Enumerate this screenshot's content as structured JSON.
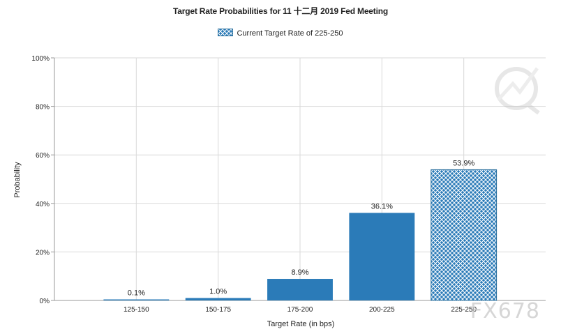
{
  "chart_data": {
    "type": "bar",
    "title": "Target Rate Probabilities for 11 十二月 2019 Fed Meeting",
    "legend": {
      "label": "Current Target Rate of 225-250",
      "placement": "top-center"
    },
    "xlabel": "Target Rate (in bps)",
    "ylabel": "Probability",
    "categories": [
      "125-150",
      "150-175",
      "175-200",
      "200-225",
      "225-250"
    ],
    "values": [
      0.1,
      1.0,
      8.9,
      36.1,
      53.9
    ],
    "data_labels": [
      "0.1%",
      "1.0%",
      "8.9%",
      "36.1%",
      "53.9%"
    ],
    "highlighted_category": "225-250",
    "ylim": [
      0,
      100
    ],
    "yticks": [
      0,
      20,
      40,
      60,
      80,
      100
    ],
    "ytick_labels": [
      "0%",
      "20%",
      "40%",
      "60%",
      "80%",
      "100%"
    ],
    "grid": true,
    "colors": {
      "bar": "#2b7bb8",
      "hatch_bg": "#2b7bb8",
      "hatch_line": "#ffffff",
      "grid": "#d9d9d9",
      "axis": "#999999"
    }
  },
  "watermark": {
    "text": "FX678",
    "icon": "q-logo-icon"
  }
}
